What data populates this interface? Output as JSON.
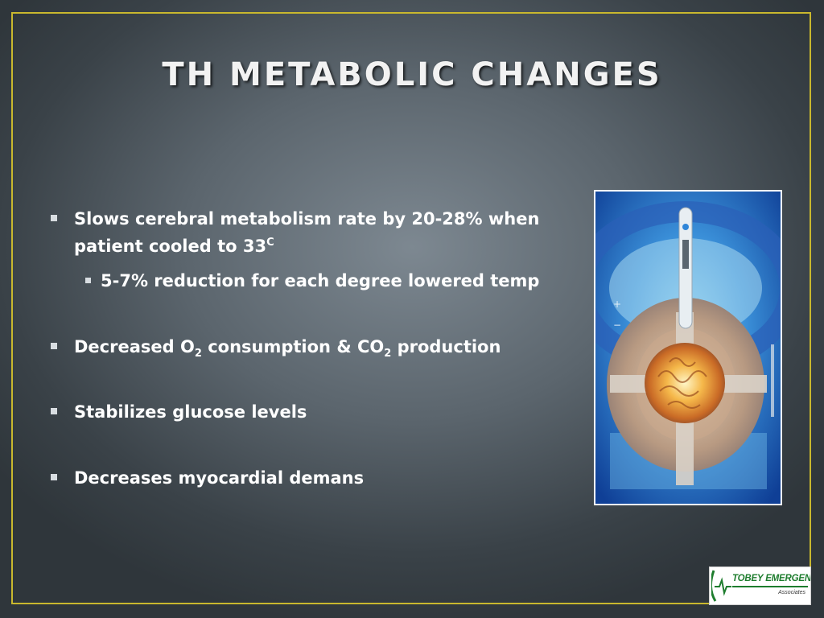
{
  "slide": {
    "title": "TH METABOLIC CHANGES",
    "bullets": [
      {
        "text": "Slows cerebral metabolism rate by 20-28% when patient cooled to 33",
        "sup": "C"
      },
      {
        "text": "5-7% reduction for each degree lowered temp"
      },
      {
        "pre": "Decreased O",
        "sub1": "2",
        "mid": " consumption & CO",
        "sub2": "2",
        "post": " production"
      },
      {
        "text": "Stabilizes glucose levels"
      },
      {
        "text": "Decreases myocardial demans"
      }
    ],
    "photo_icon": "brain-thermometer-illustration-icon",
    "logo": {
      "name": "TOBEY EMERGENCY",
      "sub": "Associates",
      "icon": "heartbeat-icon"
    },
    "colors": {
      "border": "#c9b82e",
      "title": "#f2f2f2",
      "text": "#ffffff",
      "logo_green": "#1e7d2e"
    }
  }
}
